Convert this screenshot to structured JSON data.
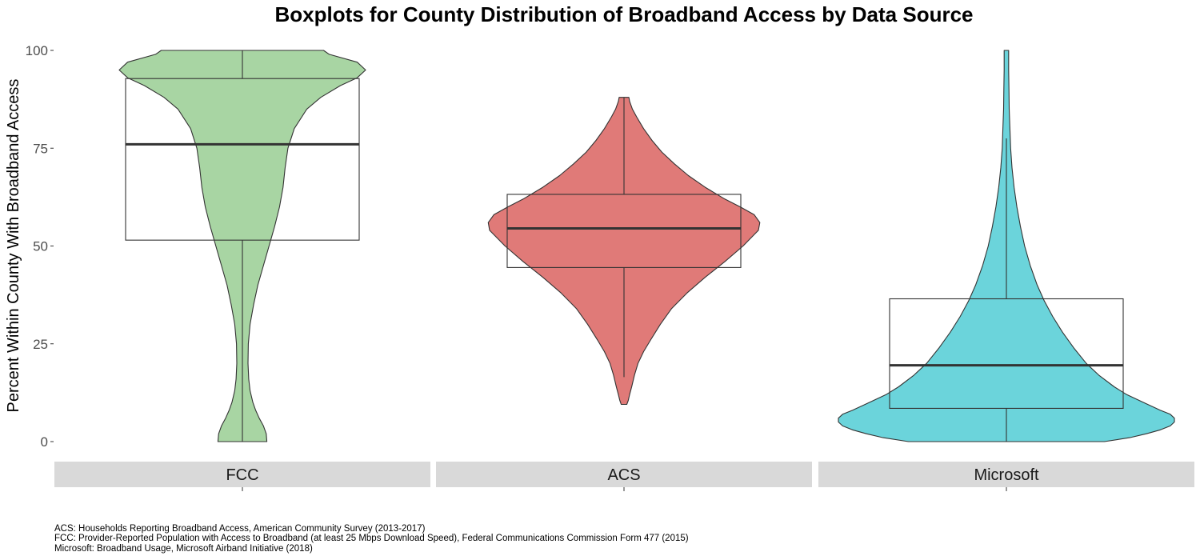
{
  "chart_data": {
    "type": "violin-boxplot",
    "title": "Boxplots for County Distribution of Broadband Access by Data Source",
    "ylabel": "Percent Within County With Broadband Access",
    "xlabel": "",
    "ylim": [
      0,
      100
    ],
    "y_ticks": [
      0,
      25,
      50,
      75,
      100
    ],
    "grid": false,
    "legend": "none",
    "panels": [
      {
        "name": "FCC",
        "color": "#a8d5a3",
        "box": {
          "whisker_low": 0,
          "q1": 51.5,
          "median": 76,
          "q3": 92.8,
          "whisker_high": 100
        },
        "violin": {
          "y": [
            0,
            2,
            4,
            6,
            8,
            10,
            13,
            16,
            20,
            25,
            30,
            35,
            40,
            45,
            50,
            55,
            60,
            65,
            70,
            75,
            80,
            85,
            88,
            91,
            93,
            95,
            97,
            99,
            100
          ],
          "width": [
            0.175,
            0.17,
            0.15,
            0.12,
            0.095,
            0.075,
            0.055,
            0.045,
            0.04,
            0.042,
            0.055,
            0.08,
            0.11,
            0.15,
            0.19,
            0.23,
            0.265,
            0.29,
            0.305,
            0.325,
            0.37,
            0.46,
            0.56,
            0.7,
            0.82,
            0.88,
            0.82,
            0.62,
            0.58
          ]
        }
      },
      {
        "name": "ACS",
        "color": "#e07a78",
        "box": {
          "whisker_low": 16.5,
          "q1": 44.5,
          "median": 54.5,
          "q3": 63.2,
          "whisker_high": 88
        },
        "violin": {
          "y": [
            9.5,
            10.5,
            12,
            14,
            17,
            20,
            23,
            26,
            30,
            34,
            38,
            42,
            46,
            50,
            54,
            56,
            58,
            60,
            62,
            65,
            68,
            71,
            74,
            77,
            80,
            83,
            85,
            87,
            88
          ],
          "width": [
            0.02,
            0.03,
            0.04,
            0.055,
            0.075,
            0.1,
            0.14,
            0.19,
            0.26,
            0.34,
            0.45,
            0.58,
            0.72,
            0.85,
            0.96,
            0.97,
            0.93,
            0.83,
            0.72,
            0.58,
            0.46,
            0.36,
            0.27,
            0.2,
            0.14,
            0.09,
            0.06,
            0.04,
            0.035
          ]
        }
      },
      {
        "name": "Microsoft",
        "color": "#6bd4db",
        "box": {
          "whisker_low": 0,
          "q1": 8.5,
          "median": 19.5,
          "q3": 36.5,
          "whisker_high": 77.5
        },
        "violin": {
          "y": [
            0,
            1,
            2,
            3,
            4,
            5,
            6,
            7,
            8,
            10,
            12,
            14,
            17,
            20,
            24,
            28,
            32,
            36,
            40,
            45,
            50,
            55,
            60,
            65,
            70,
            75,
            80,
            85,
            90,
            95,
            100
          ],
          "width": [
            0.7,
            0.88,
            1.0,
            1.1,
            1.17,
            1.2,
            1.2,
            1.17,
            1.1,
            0.98,
            0.86,
            0.77,
            0.66,
            0.57,
            0.48,
            0.4,
            0.33,
            0.27,
            0.22,
            0.17,
            0.13,
            0.1,
            0.075,
            0.055,
            0.04,
            0.03,
            0.025,
            0.02,
            0.018,
            0.016,
            0.016
          ]
        }
      }
    ],
    "caption": [
      "ACS: Households Reporting Broadband Access, American Community Survey (2013-2017)",
      "FCC: Provider-Reported Population with Access to Broadband (at least 25 Mbps Download Speed), Federal Communications Commission Form 477 (2015)",
      "Microsoft: Broadband Usage,  Microsoft Airband Initiative (2018)"
    ]
  }
}
